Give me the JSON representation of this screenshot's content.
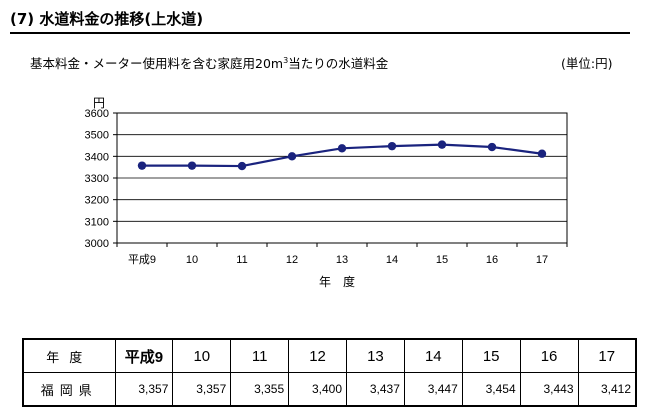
{
  "heading": "(7)  水道料金の推移(上水道)",
  "subtitle_main": "基本料金・メーター使用料を含む家庭用20m",
  "subtitle_sup": "3",
  "subtitle_tail": "当たりの水道料金",
  "unit": "(単位:円)",
  "colors": {
    "series": "#1a237e",
    "grid": "#000000"
  },
  "chart_data": {
    "type": "line",
    "categories": [
      "平成9",
      "10",
      "11",
      "12",
      "13",
      "14",
      "15",
      "16",
      "17"
    ],
    "series": [
      {
        "name": "福岡県",
        "values": [
          3357,
          3357,
          3355,
          3400,
          3437,
          3447,
          3454,
          3443,
          3412
        ]
      }
    ],
    "ylim": [
      3000,
      3600
    ],
    "yticks": [
      3000,
      3100,
      3200,
      3300,
      3400,
      3500,
      3600
    ],
    "ylabel": "円",
    "xlabel": "年　度",
    "grid": true
  },
  "table": {
    "header_label": "年度",
    "row_label": "福岡県",
    "years": [
      "平成9",
      "10",
      "11",
      "12",
      "13",
      "14",
      "15",
      "16",
      "17"
    ],
    "values": [
      "3,357",
      "3,357",
      "3,355",
      "3,400",
      "3,437",
      "3,447",
      "3,454",
      "3,443",
      "3,412"
    ]
  }
}
